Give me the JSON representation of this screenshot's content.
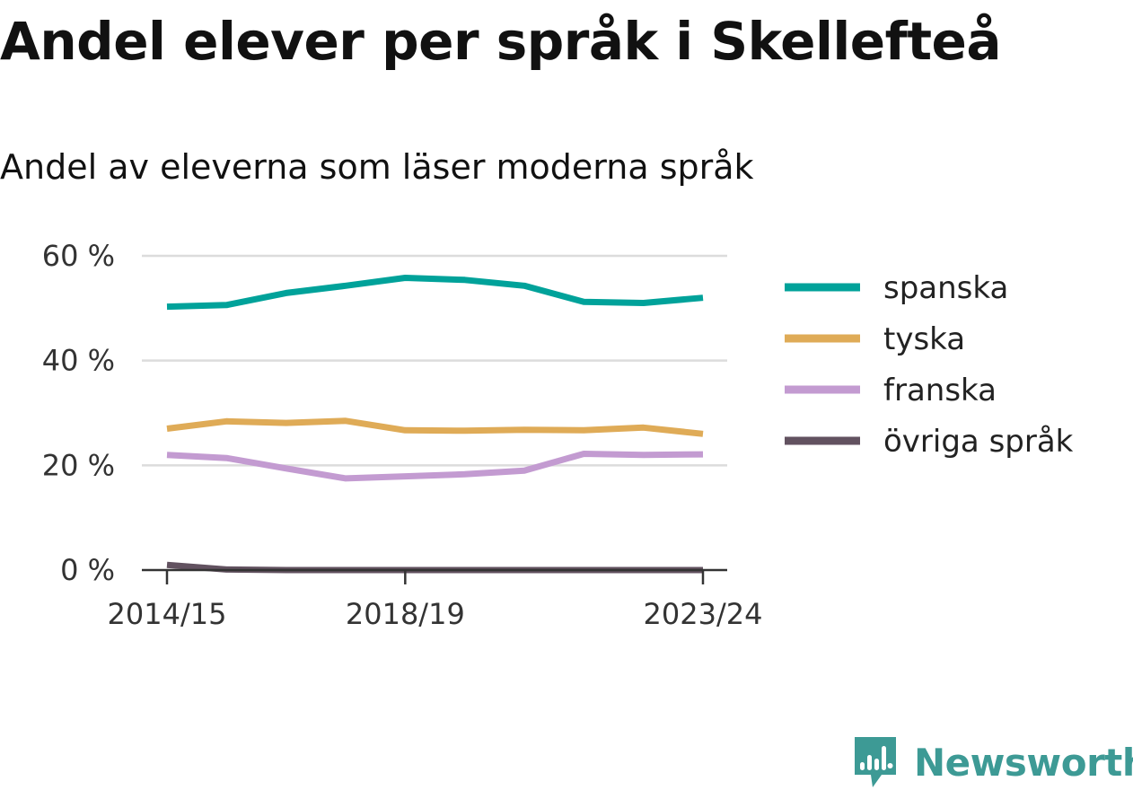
{
  "title": "Andel elever per språk i Skellefteå",
  "subtitle": "Andel av eleverna som läser moderna språk",
  "brand": {
    "name": "Newsworthy",
    "color": "#3d9a95",
    "icon": "newsworthy-logo-icon"
  },
  "chart_data": {
    "type": "line",
    "x": [
      "2014/15",
      "2015/16",
      "2016/17",
      "2017/18",
      "2018/19",
      "2019/20",
      "2020/21",
      "2021/22",
      "2022/23",
      "2023/24"
    ],
    "xticks": [
      "2014/15",
      "2018/19",
      "2023/24"
    ],
    "yticks": [
      "0 %",
      "20 %",
      "40 %",
      "60 %"
    ],
    "ylim": [
      0,
      60
    ],
    "grid": true,
    "legend_position": "right",
    "series": [
      {
        "name": "spanska",
        "color": "#00a29a",
        "values": [
          50.3,
          50.6,
          52.9,
          54.3,
          55.8,
          55.4,
          54.3,
          51.2,
          51.0,
          52.0
        ]
      },
      {
        "name": "tyska",
        "color": "#dfab57",
        "values": [
          27.0,
          28.4,
          28.1,
          28.5,
          26.7,
          26.6,
          26.8,
          26.7,
          27.2,
          26.0
        ]
      },
      {
        "name": "franska",
        "color": "#c39bd1",
        "values": [
          22.0,
          21.4,
          19.4,
          17.5,
          17.9,
          18.3,
          19.0,
          22.2,
          22.0,
          22.1
        ]
      },
      {
        "name": "övriga språk",
        "color": "#625260",
        "values": [
          1.0,
          0.1,
          0.0,
          0.0,
          0.0,
          0.0,
          0.0,
          0.0,
          0.0,
          0.0
        ]
      }
    ]
  }
}
